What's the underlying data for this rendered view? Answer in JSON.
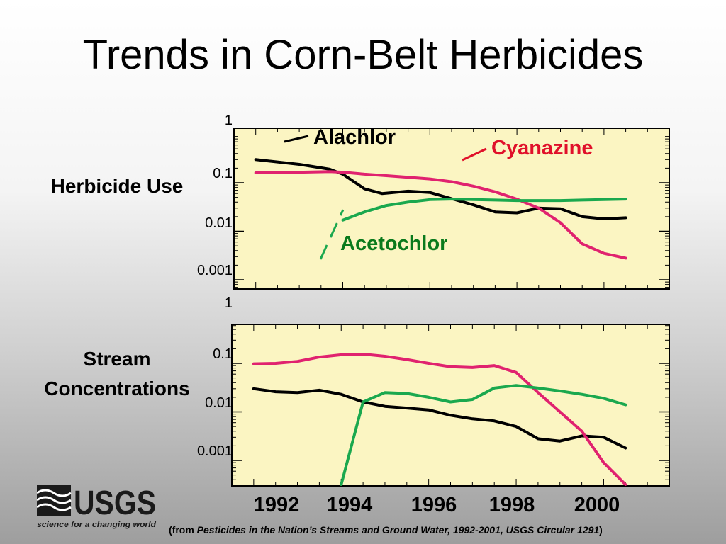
{
  "title": "Trends in Corn-Belt Herbicides",
  "panel_labels": {
    "use": "Herbicide Use",
    "stream": "Stream Concentrations"
  },
  "logo": {
    "text": "USGS",
    "tagline": "science for a changing world"
  },
  "citation": {
    "open": "(from ",
    "italic": "Pesticides in the Nation’s Streams and Ground Water, 1992-2001, USGS Circular 1291",
    "close": ")"
  },
  "colors": {
    "plot_bg": "#fbf5c2",
    "alachlor": "#000000",
    "cyanazine": "#e0226f",
    "acetochlor": "#1aa84e",
    "cyanazine_label": "#e0102a",
    "acetochlor_label": "#0a7a1c"
  },
  "chart_data": [
    {
      "type": "line",
      "panel": "Herbicide Use",
      "scale": "log",
      "ylim": [
        0.0008,
        0.5
      ],
      "xlim": [
        1991.5,
        2001.5
      ],
      "yticks": [
        "1",
        "0.1",
        "0.01",
        "0.001"
      ],
      "grid": false,
      "series": [
        {
          "name": "Alachlor",
          "x": [
            1992,
            1993,
            1993.7,
            1994,
            1994.5,
            1994.9,
            1995.5,
            1996,
            1996.5,
            1997,
            1997.5,
            1998,
            1998.5,
            1999,
            1999.5,
            2000,
            2000.5
          ],
          "y": [
            0.3,
            0.24,
            0.19,
            0.15,
            0.075,
            0.06,
            0.067,
            0.063,
            0.047,
            0.035,
            0.025,
            0.024,
            0.03,
            0.029,
            0.02,
            0.018,
            0.019
          ]
        },
        {
          "name": "Cyanazine",
          "x": [
            1992,
            1993,
            1993.7,
            1994,
            1994.5,
            1995,
            1995.5,
            1996,
            1996.5,
            1997,
            1997.5,
            1998,
            1998.5,
            1999,
            1999.5,
            2000,
            2000.5
          ],
          "y": [
            0.16,
            0.165,
            0.17,
            0.165,
            0.15,
            0.14,
            0.13,
            0.12,
            0.105,
            0.085,
            0.065,
            0.046,
            0.03,
            0.015,
            0.0055,
            0.0035,
            0.0028
          ]
        },
        {
          "name": "Acetochlor",
          "x": [
            1994,
            1994.5,
            1995,
            1995.5,
            1996,
            1996.5,
            1997,
            1997.5,
            1998,
            1998.5,
            1999,
            1999.5,
            2000,
            2000.5
          ],
          "y": [
            0.017,
            0.025,
            0.034,
            0.04,
            0.045,
            0.046,
            0.045,
            0.044,
            0.043,
            0.043,
            0.043,
            0.044,
            0.045,
            0.046
          ]
        }
      ]
    },
    {
      "type": "line",
      "panel": "Stream Concentrations",
      "scale": "log",
      "ylim": [
        0.0001,
        0.4
      ],
      "xlim": [
        1991.5,
        2001.5
      ],
      "xticks": [
        "1992",
        "1994",
        "1996",
        "1998",
        "2000"
      ],
      "yticks": [
        "1",
        "0.1",
        "0.01",
        "0.001"
      ],
      "grid": false,
      "series": [
        {
          "name": "Alachlor",
          "x": [
            1992,
            1992.5,
            1993,
            1993.5,
            1994,
            1994.5,
            1995,
            1995.5,
            1996,
            1996.5,
            1997,
            1997.5,
            1998,
            1998.5,
            1999,
            1999.5,
            2000,
            2000.5
          ],
          "y": [
            0.03,
            0.026,
            0.025,
            0.028,
            0.023,
            0.016,
            0.013,
            0.012,
            0.011,
            0.0085,
            0.0072,
            0.0065,
            0.005,
            0.0028,
            0.0025,
            0.0032,
            0.003,
            0.0018
          ]
        },
        {
          "name": "Cyanazine",
          "x": [
            1992,
            1992.5,
            1993,
            1993.5,
            1994,
            1994.5,
            1995,
            1995.5,
            1996,
            1996.5,
            1997,
            1997.5,
            1998,
            1998.5,
            1999,
            1999.5,
            2000,
            2000.5
          ],
          "y": [
            0.098,
            0.1,
            0.11,
            0.135,
            0.15,
            0.155,
            0.14,
            0.12,
            0.1,
            0.085,
            0.082,
            0.09,
            0.065,
            0.025,
            0.01,
            0.004,
            0.0009,
            0.00011
          ]
        },
        {
          "name": "Acetochlor",
          "x": [
            1994,
            1994.5,
            1995,
            1995.5,
            1996,
            1996.5,
            1997,
            1997.5,
            1998,
            1998.5,
            1999,
            1999.5,
            2000,
            2000.5
          ],
          "y": [
            0.00011,
            0.016,
            0.025,
            0.024,
            0.02,
            0.016,
            0.018,
            0.031,
            0.035,
            0.031,
            0.027,
            0.023,
            0.019,
            0.014
          ]
        }
      ]
    }
  ],
  "annotations": {
    "alachlor": "Alachlor",
    "cyanazine": "Cyanazine",
    "acetochlor": "Acetochlor"
  }
}
